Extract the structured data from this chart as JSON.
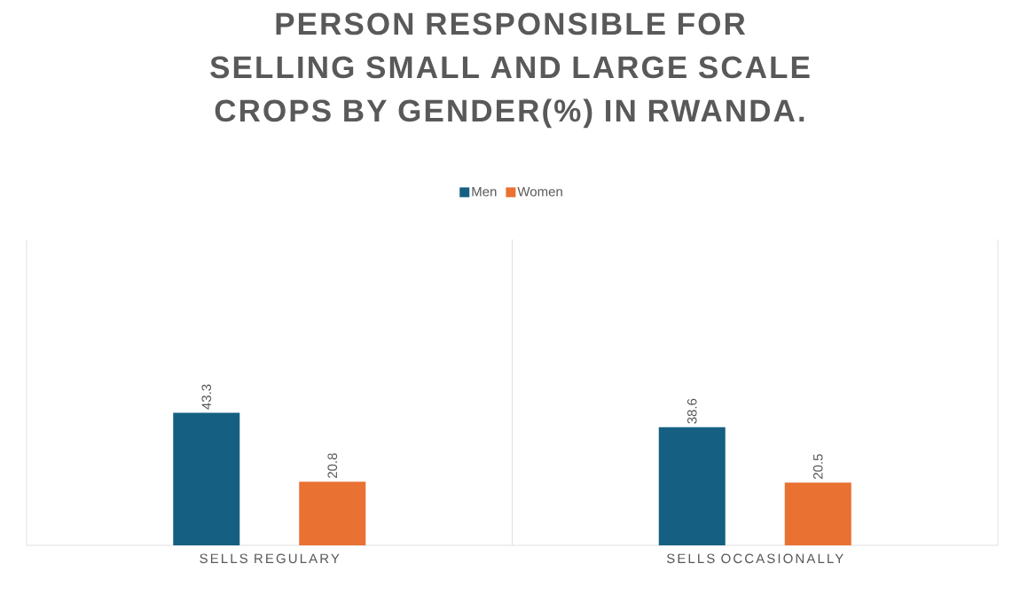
{
  "chart_data": {
    "type": "bar",
    "title": "PERSON RESPONSIBLE FOR SELLING SMALL AND LARGE SCALE CROPS BY GENDER(%) IN RWANDA.",
    "categories": [
      "SELLS REGULARY",
      "SELLS OCCASIONALLY"
    ],
    "series": [
      {
        "name": "Men",
        "color": "#156082",
        "values": [
          43.3,
          38.6
        ]
      },
      {
        "name": "Women",
        "color": "#e97132",
        "values": [
          20.8,
          20.5
        ]
      }
    ],
    "ylim": [
      0,
      100
    ],
    "data_labels": true,
    "legend": "top",
    "grid": "x"
  }
}
